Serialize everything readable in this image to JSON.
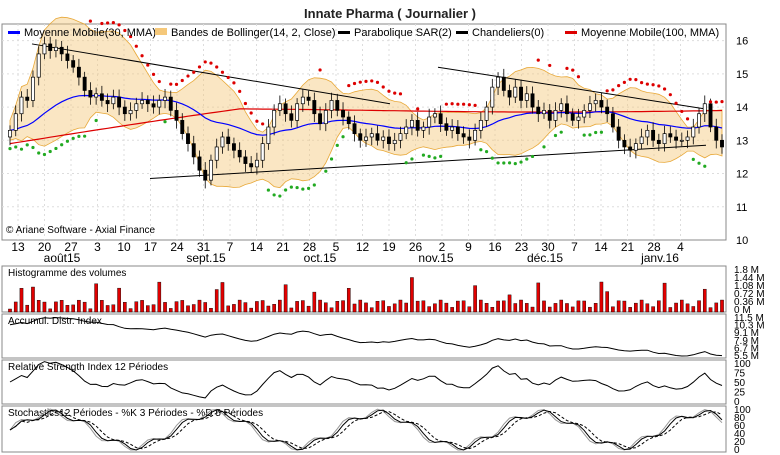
{
  "title": "Innate Pharma  ( Journalier )",
  "copyright": "© Ariane Software - Axial Finance",
  "legend": [
    {
      "label": "Moyenne Mobile(30, MMA)",
      "color": "#0000ff",
      "icon": "line-swatch-icon"
    },
    {
      "label": "Bandes de Bollinger(14, 2, Close)",
      "color": "#f5c87a",
      "icon": "band-swatch-icon"
    },
    {
      "label": "Parabolique SAR(2)",
      "color": "#000000",
      "icon": "line-swatch-icon"
    },
    {
      "label": "Chandeliers(0)",
      "color": "#000000",
      "icon": "line-swatch-icon"
    },
    {
      "label": "Moyenne Mobile(100, MMA)",
      "color": "#dd0000",
      "icon": "line-swatch-icon"
    }
  ],
  "x_day_ticks": [
    "13",
    "20",
    "27",
    "3",
    "10",
    "17",
    "24",
    "31",
    "7",
    "14",
    "21",
    "28",
    "5",
    "12",
    "19",
    "26",
    "2",
    "9",
    "16",
    "23",
    "30",
    "7",
    "14",
    "21",
    "28",
    "4"
  ],
  "x_month_labels": [
    "août15",
    "sept.15",
    "oct.15",
    "nov.15",
    "déc.15",
    "janv.16"
  ],
  "panels": {
    "volume": {
      "label": "Histogramme des volumes",
      "ticks": [
        "1.8 M",
        "1.44 M",
        "1.08 M",
        "0.72 M",
        "0.36 M",
        "0 M"
      ]
    },
    "ad": {
      "label": "Accumul. Distr. Index",
      "ticks": [
        "11.5 M",
        "10.3 M",
        "9.1 M",
        "7.9 M",
        "6.7 M",
        "5.5 M"
      ]
    },
    "rsi": {
      "label": "Relative Strength Index 12 Périodes",
      "ticks": [
        "100",
        "75",
        "50",
        "25",
        "0"
      ]
    },
    "stoch": {
      "label": "Stochastics12 Périodes  - %K 3 Périodes  - %D 5 Périodes",
      "ticks": [
        "100",
        "80",
        "60",
        "40",
        "20",
        "0"
      ]
    }
  },
  "colors": {
    "up": "#ffffff",
    "down": "#000000",
    "volume": "#e00000",
    "sar_up": "#22aa22",
    "sar_down": "#dd0000",
    "ma30": "#0000ff",
    "ma100": "#dd0000",
    "bollinger": "#f5c87a"
  },
  "chart_data": [
    {
      "type": "candlestick",
      "title": "Innate Pharma  ( Journalier )",
      "y_ticks": [
        10,
        11,
        12,
        13,
        14,
        15,
        16
      ],
      "ylim": [
        10,
        16.5
      ],
      "close": [
        13.3,
        13.8,
        14.3,
        14.2,
        14.9,
        15.6,
        15.9,
        15.7,
        15.8,
        15.6,
        15.4,
        15.2,
        14.9,
        14.5,
        14.3,
        14.4,
        14.2,
        14.1,
        14.3,
        14.0,
        13.8,
        13.9,
        14.1,
        14.2,
        14.1,
        14.0,
        14.2,
        14.3,
        13.9,
        13.6,
        13.2,
        12.9,
        12.5,
        12.1,
        11.8,
        12.4,
        12.8,
        13.1,
        12.9,
        12.7,
        12.5,
        12.3,
        12.2,
        12.4,
        12.9,
        13.4,
        13.9,
        14.1,
        13.8,
        13.6,
        14.1,
        14.3,
        14.2,
        13.8,
        13.5,
        13.9,
        14.2,
        13.9,
        13.7,
        13.5,
        13.2,
        13.0,
        13.1,
        13.2,
        13.0,
        13.1,
        12.9,
        13.0,
        13.2,
        13.4,
        13.6,
        13.3,
        13.4,
        13.7,
        13.8,
        13.5,
        13.3,
        13.4,
        13.2,
        13.1,
        13.0,
        13.3,
        13.6,
        14.0,
        14.6,
        14.9,
        14.5,
        14.3,
        14.6,
        14.2,
        14.4,
        14.0,
        13.8,
        13.9,
        13.6,
        13.9,
        14.1,
        13.8,
        13.6,
        13.7,
        13.9,
        14.1,
        14.2,
        14.0,
        13.8,
        13.4,
        13.0,
        12.8,
        12.7,
        12.9,
        13.1,
        13.3,
        13.0,
        12.9,
        13.2,
        13.1,
        13.0,
        13.0,
        13.1,
        13.4,
        13.8,
        14.1,
        13.4,
        13.0,
        12.8
      ],
      "series": [
        {
          "name": "Moyenne Mobile(30, MMA)"
        },
        {
          "name": "Bandes de Bollinger(14, 2, Close)"
        },
        {
          "name": "Parabolique SAR(2)"
        },
        {
          "name": "Moyenne Mobile(100, MMA)"
        }
      ]
    },
    {
      "type": "bar",
      "title": "Histogramme des volumes",
      "ylim": [
        0,
        1.8
      ]
    },
    {
      "type": "line",
      "title": "Accumul. Distr. Index",
      "ylim": [
        5.5,
        11.5
      ]
    },
    {
      "type": "line",
      "title": "Relative Strength Index 12 Périodes",
      "ylim": [
        0,
        100
      ]
    },
    {
      "type": "line",
      "title": "Stochastics12 Périodes  - %K 3 Périodes  - %D 5 Périodes",
      "ylim": [
        0,
        100
      ]
    }
  ]
}
